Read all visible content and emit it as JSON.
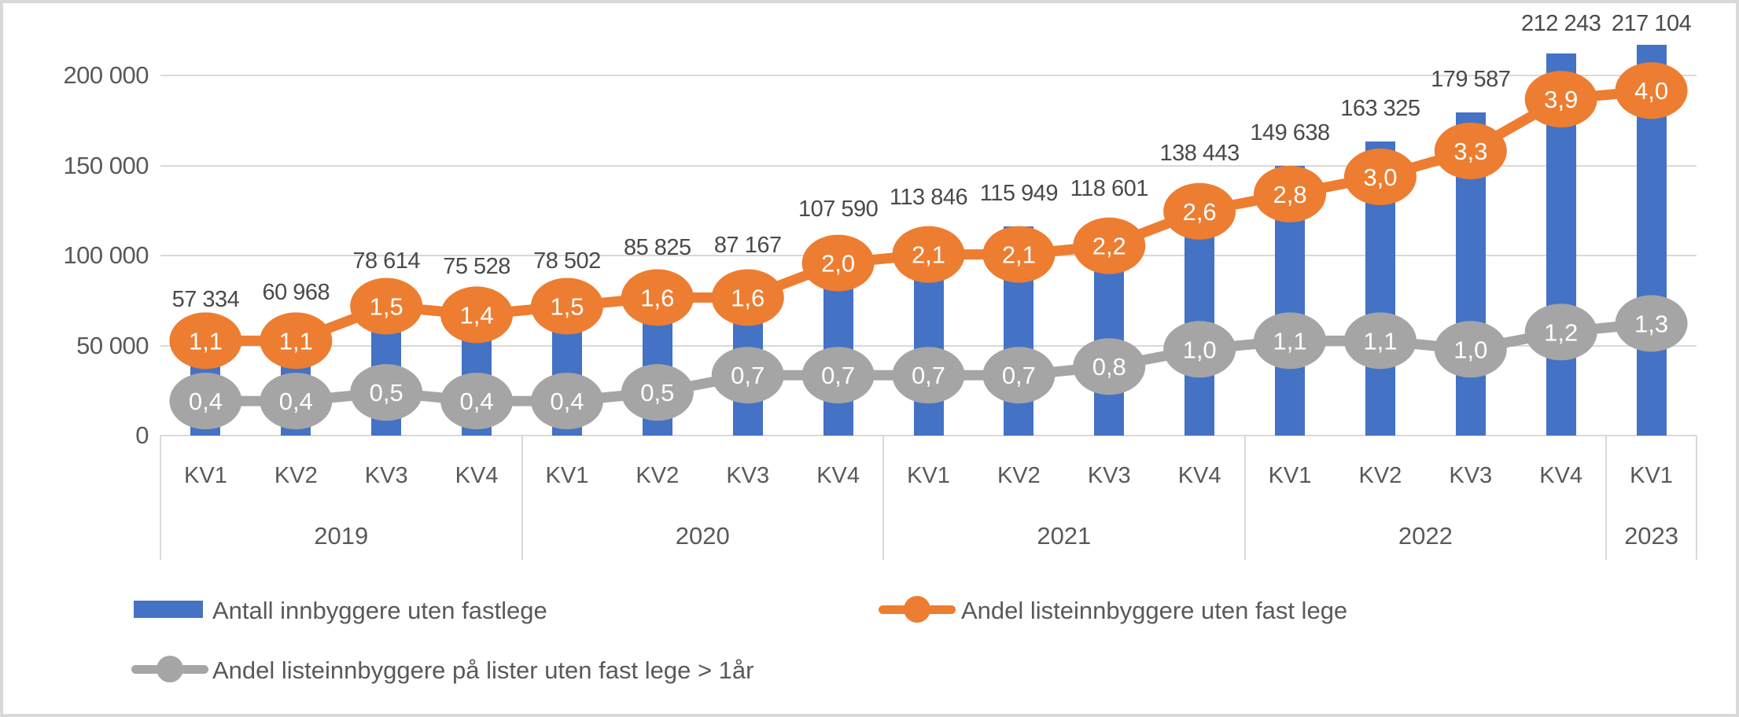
{
  "chart_data": {
    "type": "combo-bar-line",
    "quarter_labels": [
      "KV1",
      "KV2",
      "KV3",
      "KV4",
      "KV1",
      "KV2",
      "KV3",
      "KV4",
      "KV1",
      "KV2",
      "KV3",
      "KV4",
      "KV1",
      "KV2",
      "KV3",
      "KV4",
      "KV1"
    ],
    "year_groups": [
      {
        "label": "2019",
        "quarters": 4
      },
      {
        "label": "2020",
        "quarters": 4
      },
      {
        "label": "2021",
        "quarters": 4
      },
      {
        "label": "2022",
        "quarters": 4
      },
      {
        "label": "2023",
        "quarters": 1
      }
    ],
    "y_axis_left": {
      "tick_labels": [
        "0",
        "50 000",
        "100 000",
        "150 000",
        "200 000"
      ],
      "tick_values": [
        0,
        50000,
        100000,
        150000,
        200000
      ],
      "max": 220000,
      "grid": true
    },
    "y_axis_percent_implied": {
      "min": 0,
      "max": 4.5
    },
    "series": [
      {
        "name": "Antall innbyggere uten fastlege",
        "type": "bar",
        "color": "#4472C4",
        "values": [
          57334,
          60968,
          78614,
          75528,
          78502,
          85825,
          87167,
          107590,
          113846,
          115949,
          118601,
          138443,
          149638,
          163325,
          179587,
          212243,
          217104
        ],
        "data_labels": [
          "57 334",
          "60 968",
          "78 614",
          "75 528",
          "78 502",
          "85 825",
          "87 167",
          "107 590",
          "113 846",
          "115 949",
          "118 601",
          "138 443",
          "149 638",
          "163 325",
          "179 587",
          "212 243",
          "217 104"
        ]
      },
      {
        "name": "Andel listeinnbyggere uten fast lege",
        "type": "line",
        "color": "#ED7D31",
        "values": [
          1.1,
          1.1,
          1.5,
          1.4,
          1.5,
          1.6,
          1.6,
          2.0,
          2.1,
          2.1,
          2.2,
          2.6,
          2.8,
          3.0,
          3.3,
          3.9,
          4.0
        ],
        "data_labels": [
          "1,1",
          "1,1",
          "1,5",
          "1,4",
          "1,5",
          "1,6",
          "1,6",
          "2,0",
          "2,1",
          "2,1",
          "2,2",
          "2,6",
          "2,8",
          "3,0",
          "3,3",
          "3,9",
          "4,0"
        ]
      },
      {
        "name": "Andel listeinnbyggere på lister uten fast lege > 1år",
        "type": "line",
        "color": "#A5A5A5",
        "values": [
          0.4,
          0.4,
          0.5,
          0.4,
          0.4,
          0.5,
          0.7,
          0.7,
          0.7,
          0.7,
          0.8,
          1.0,
          1.1,
          1.1,
          1.0,
          1.2,
          1.3
        ],
        "data_labels": [
          "0,4",
          "0,4",
          "0,5",
          "0,4",
          "0,4",
          "0,5",
          "0,7",
          "0,7",
          "0,7",
          "0,7",
          "0,8",
          "1,0",
          "1,1",
          "1,1",
          "1,0",
          "1,2",
          "1,3"
        ]
      }
    ]
  },
  "legend": {
    "items": [
      {
        "marker": "bar",
        "color": "#4472C4"
      },
      {
        "marker": "line",
        "color": "#ED7D31"
      },
      {
        "marker": "line",
        "color": "#A5A5A5"
      }
    ]
  }
}
